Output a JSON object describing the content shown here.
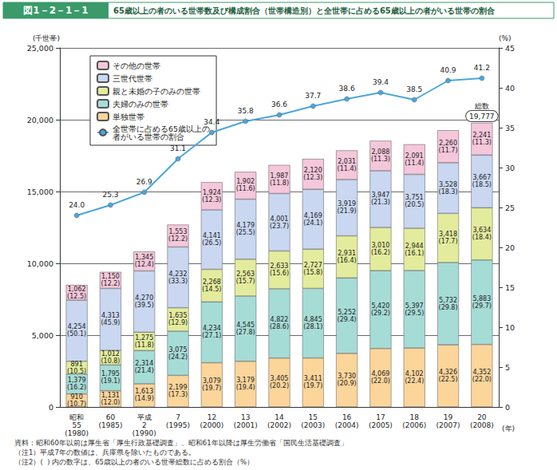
{
  "chart_data": {
    "type": "bar",
    "subtitle": "図1－2－1－1",
    "title": "65歳以上の者のいる世帯数及び構成割合（世帯構造別）と全世帯に占める65歳以上の者がいる世帯の割合",
    "y_label": "(千世帯)",
    "y2_label": "(%)",
    "x_label": "(年)",
    "categories": [
      "昭和\n55\n(1980)",
      "60\n(1985)",
      "平成\n2\n(1990)",
      "7\n(1995)",
      "12\n(2000)",
      "13\n(2001)",
      "14\n(2002)",
      "15\n(2003)",
      "16\n(2004)",
      "17\n(2005)",
      "18\n(2006)",
      "19\n(2007)",
      "20\n(2008)"
    ],
    "stacked": true,
    "data_labels": true,
    "grid": true,
    "legend": "upper left",
    "ylim": [
      0,
      25000
    ],
    "yticks": [
      0,
      {
        "value": 5000,
        "label": "5,000"
      },
      {
        "value": 10000,
        "label": "10,000"
      },
      {
        "value": 15000,
        "label": "15,000"
      },
      {
        "value": 20000,
        "label": "20,000"
      },
      {
        "value": 25000,
        "label": "25,000"
      }
    ],
    "y2lim": [
      0,
      45
    ],
    "y2ticks": [
      0,
      5,
      10,
      15,
      20,
      25,
      30,
      35,
      40,
      45
    ],
    "series": [
      {
        "name": "単独世帯",
        "color": "#fbd59a",
        "values": [
          910,
          1131,
          1613,
          2199,
          3079,
          3179,
          3405,
          3411,
          3730,
          4069,
          4102,
          4326,
          4352
        ],
        "value_labels": [
          "910\n(10.7)",
          "1,131\n(12.0)",
          "1,613\n(14.9)",
          "2,199\n(17.3)",
          "3,079\n(19.7)",
          "3,179\n(19.4)",
          "3,405\n(20.2)",
          "3,411\n(19.7)",
          "3,730\n(20.9)",
          "4,069\n(22.0)",
          "4,102\n(22.4)",
          "4,326\n(22.5)",
          "4,352\n(22.0)"
        ]
      },
      {
        "name": "夫婦のみの世帯",
        "color": "#a6dcd6",
        "values": [
          1379,
          1795,
          2314,
          3075,
          4234,
          4545,
          4822,
          4845,
          5252,
          5420,
          5397,
          5732,
          5883
        ],
        "value_labels": [
          "1,379\n(16.2)",
          "1,795\n(19.1)",
          "2,314\n(21.4)",
          "3,075\n(24.2)",
          "4,234\n(27.1)",
          "4,545\n(27.8)",
          "4,822\n(28.6)",
          "4,845\n(28.1)",
          "5,252\n(29.4)",
          "5,420\n(29.2)",
          "5,397\n(29.5)",
          "5,732\n(29.8)",
          "5,883\n(29.7)"
        ]
      },
      {
        "name": "親と未婚の子のみの世帯",
        "color": "#e3ec9c",
        "values": [
          891,
          1012,
          1275,
          1635,
          2268,
          2563,
          2633,
          2727,
          2931,
          3010,
          2944,
          3418,
          3634
        ],
        "value_labels": [
          "891\n(10.5)",
          "1,012\n(10.8)",
          "1,275\n(11.8)",
          "1,635\n(12.9)",
          "2,268\n(14.5)",
          "2,563\n(15.7)",
          "2,633\n(15.6)",
          "2,727\n(15.8)",
          "2,931\n(16.4)",
          "3,010\n(16.2)",
          "2,944\n(16.1)",
          "3,418\n(17.7)",
          "3,634\n(18.4)"
        ]
      },
      {
        "name": "三世代世帯",
        "color": "#c9d7f1",
        "values": [
          4254,
          4313,
          4270,
          4232,
          4141,
          4179,
          4001,
          4169,
          3919,
          3947,
          3751,
          3528,
          3667
        ],
        "value_labels": [
          "4,254\n(50.1)",
          "4,313\n(45.9)",
          "4,270\n(39.5)",
          "4,232\n(33.3)",
          "4,141\n(26.5)",
          "4,179\n(25.5)",
          "4,001\n(23.7)",
          "4,169\n(24.1)",
          "3,919\n(21.9)",
          "3,947\n(21.3)",
          "3,751\n(20.5)",
          "3,528\n(18.3)",
          "3,667\n(18.5)"
        ]
      },
      {
        "name": "その他の世帯",
        "color": "#f5c7da",
        "values": [
          1062,
          1150,
          1345,
          1553,
          1924,
          1902,
          1987,
          2120,
          2031,
          2088,
          2091,
          2260,
          2241
        ],
        "value_labels": [
          "1,062\n(12.5)",
          "1,150\n(12.2)",
          "1,345\n(12.4)",
          "1,553\n(12.2)",
          "1,924\n(12.3)",
          "1,902\n(11.6)",
          "1,987\n(11.8)",
          "2,120\n(12.3)",
          "2,031\n(11.4)",
          "2,088\n(11.3)",
          "2,091\n(11.4)",
          "2,260\n(11.7)",
          "2,241\n(11.3)"
        ]
      },
      {
        "name": "全世帯に占める65歳以上の\n者がいる世帯の割合",
        "type": "line",
        "axis": "y2",
        "color": "#4aa6de",
        "marker": "circle",
        "values": [
          24.0,
          25.3,
          26.9,
          31.1,
          34.4,
          35.8,
          36.6,
          37.7,
          38.6,
          39.4,
          38.5,
          40.9,
          41.2
        ],
        "value_labels": [
          "24.0",
          "25.3",
          "26.9",
          "31.1",
          "34.4",
          "35.8",
          "36.6",
          "37.7",
          "38.6",
          "39.4",
          "38.5",
          "40.9",
          "41.2"
        ]
      }
    ],
    "annotations": [
      {
        "category": "20\n(2008)",
        "label": "総数",
        "value": 19777,
        "value_label": "19,777"
      }
    ],
    "notes": [
      "資料：昭和60年以前は厚生省「厚生行政基礎調査」、昭和61年以降は厚生労働省「国民生活基礎調査」",
      "（注1）平成7年の数値は、兵庫県を除いたものである。",
      "（注2）(  ) 内の数字は、65歳以上の者のいる世帯総数に占める割合（%）"
    ]
  }
}
